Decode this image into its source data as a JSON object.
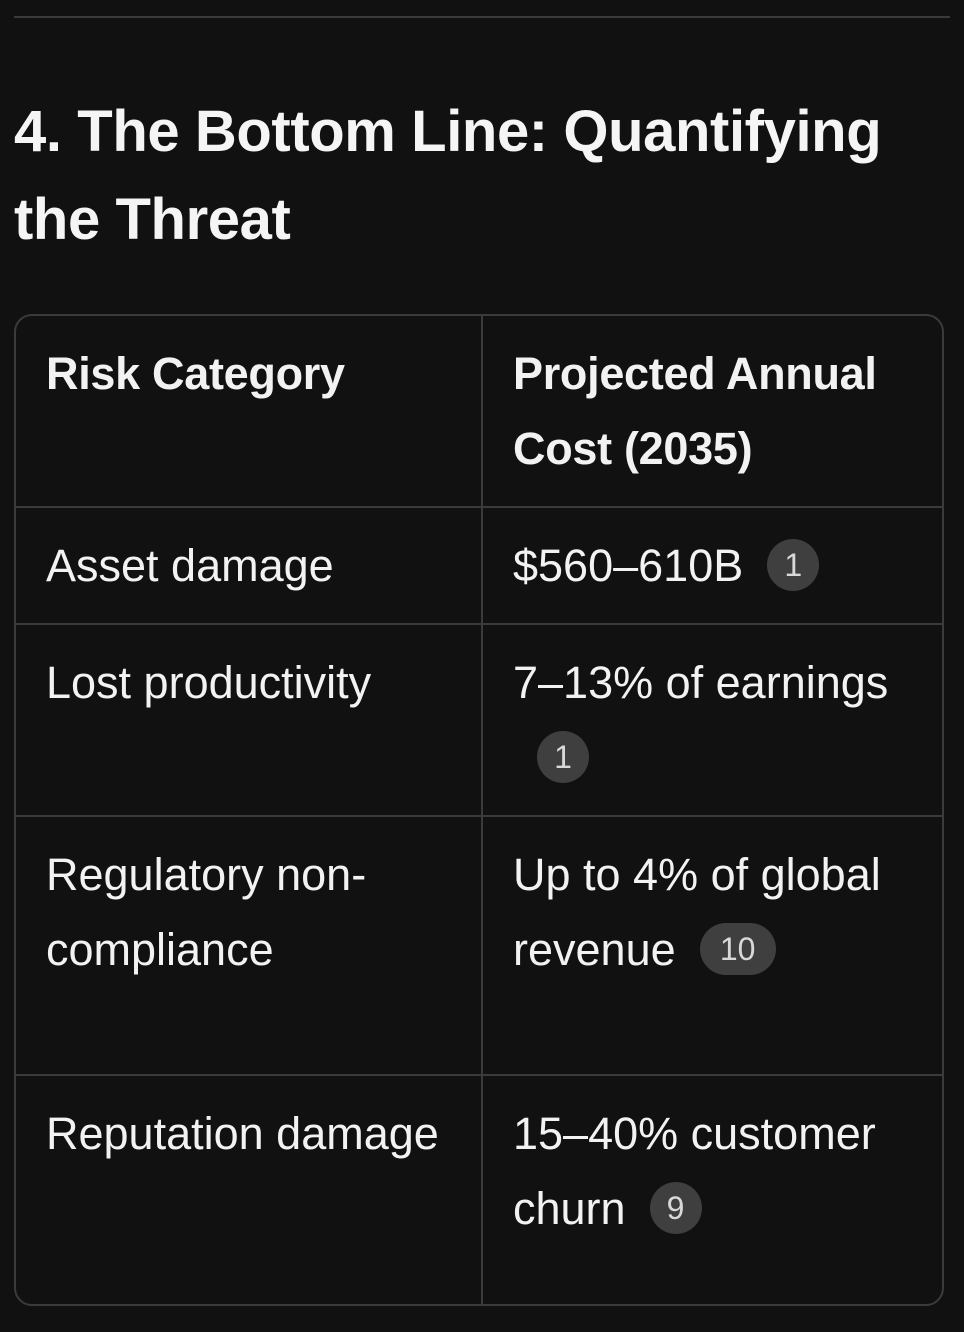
{
  "section": {
    "title": "4. The Bottom Line: Quantifying the Threat"
  },
  "table": {
    "headers": [
      "Risk Category",
      "Projected Annual Cost (2035)"
    ],
    "rows": [
      {
        "category": "Asset damage",
        "cost": "$560–610B",
        "citation": "1"
      },
      {
        "category": "Lost productivity",
        "cost": "7–13% of earnings",
        "citation": "1"
      },
      {
        "category": "Regulatory non-compliance",
        "cost": "Up to 4% of global revenue",
        "citation": "10"
      },
      {
        "category": "Reputation damage",
        "cost": "15–40% customer churn",
        "citation": "9"
      }
    ]
  }
}
